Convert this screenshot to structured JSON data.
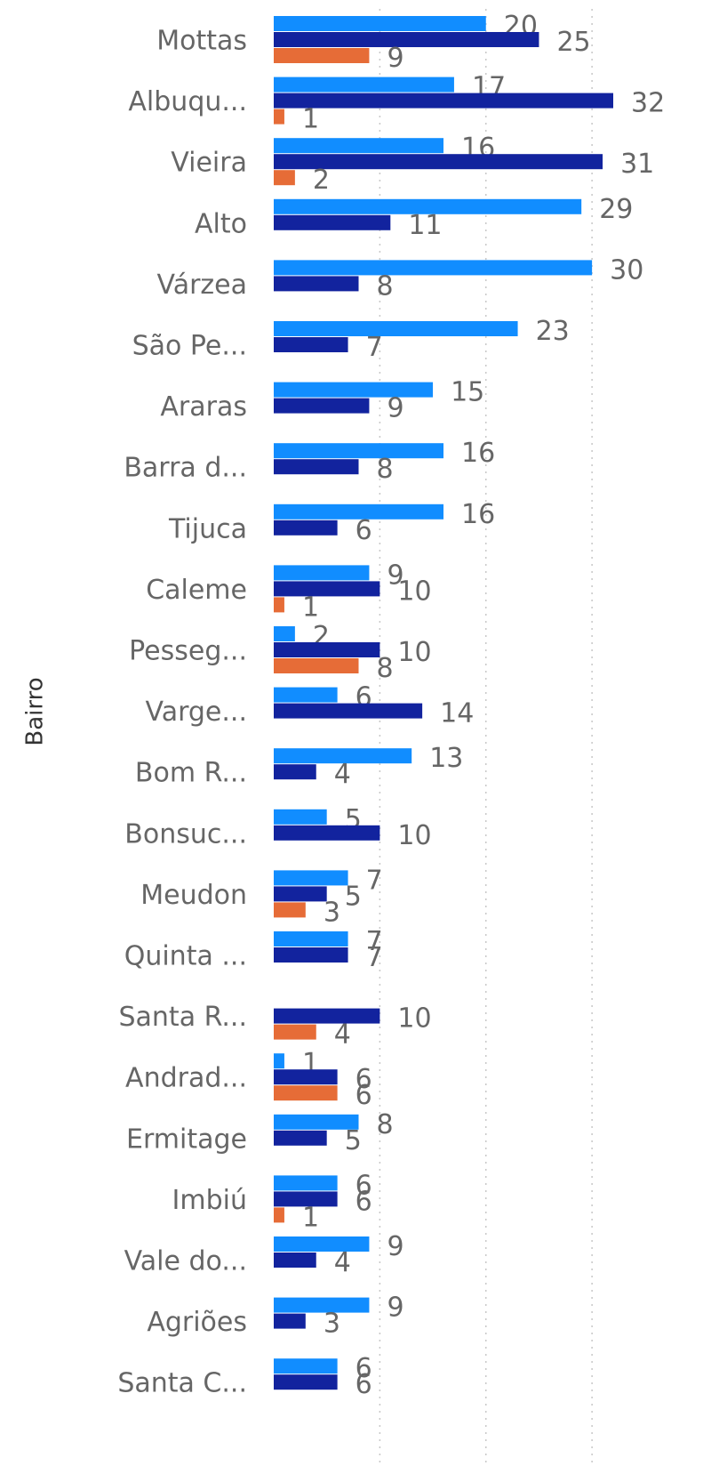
{
  "chart_data": {
    "type": "hbar",
    "y_axis_label": "Bairro",
    "categories": [
      "Mottas",
      "Albuqu...",
      "Vieira",
      "Alto",
      "Várzea",
      "São Pe...",
      "Araras",
      "Barra d...",
      "Tijuca",
      "Caleme",
      "Pesseg...",
      "Varge...",
      "Bom R...",
      "Bonsuc...",
      "Meudon",
      "Quinta ...",
      "Santa R...",
      "Andrad...",
      "Ermitage",
      "Imbiú",
      "Vale do...",
      "Agriões",
      "Santa C..."
    ],
    "series": [
      {
        "color": "#118DFF",
        "values": [
          20,
          17,
          16,
          29,
          30,
          23,
          15,
          16,
          16,
          9,
          2,
          6,
          13,
          5,
          7,
          7,
          null,
          1,
          8,
          6,
          9,
          9,
          6
        ]
      },
      {
        "color": "#12239E",
        "values": [
          25,
          32,
          31,
          11,
          8,
          7,
          9,
          8,
          6,
          10,
          10,
          14,
          4,
          10,
          5,
          7,
          10,
          6,
          5,
          6,
          4,
          3,
          6
        ]
      },
      {
        "color": "#E66C37",
        "values": [
          9,
          1,
          2,
          null,
          null,
          null,
          null,
          null,
          null,
          1,
          8,
          null,
          null,
          null,
          3,
          null,
          4,
          6,
          null,
          1,
          null,
          null,
          null
        ]
      }
    ],
    "xlim": [
      0,
      32
    ],
    "xticks": [
      0,
      10,
      20,
      30
    ],
    "grid": true
  }
}
